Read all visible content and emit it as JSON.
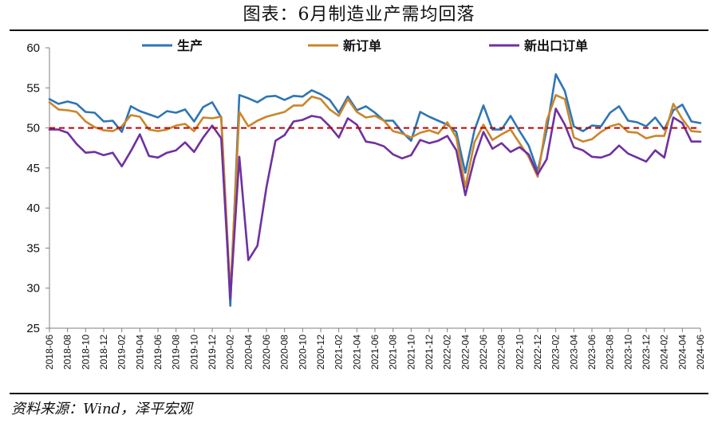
{
  "title": "图表：6月制造业产需均回落",
  "source": "资料来源：Wind，泽平宏观",
  "chart_data": {
    "type": "line",
    "ylim": [
      25,
      60
    ],
    "yticks": [
      25,
      30,
      35,
      40,
      45,
      50,
      55,
      60
    ],
    "reference_line": {
      "value": 50,
      "color": "#c00000",
      "style": "dashed"
    },
    "legend_placement": "top",
    "x": [
      "2018-06",
      "2018-07",
      "2018-08",
      "2018-09",
      "2018-10",
      "2018-11",
      "2018-12",
      "2019-01",
      "2019-02",
      "2019-03",
      "2019-04",
      "2019-05",
      "2019-06",
      "2019-07",
      "2019-08",
      "2019-09",
      "2019-10",
      "2019-11",
      "2019-12",
      "2020-01",
      "2020-02",
      "2020-03",
      "2020-04",
      "2020-05",
      "2020-06",
      "2020-07",
      "2020-08",
      "2020-09",
      "2020-10",
      "2020-11",
      "2020-12",
      "2021-01",
      "2021-02",
      "2021-03",
      "2021-04",
      "2021-05",
      "2021-06",
      "2021-07",
      "2021-08",
      "2021-09",
      "2021-10",
      "2021-11",
      "2021-12",
      "2022-01",
      "2022-02",
      "2022-03",
      "2022-04",
      "2022-05",
      "2022-06",
      "2022-07",
      "2022-08",
      "2022-09",
      "2022-10",
      "2022-11",
      "2022-12",
      "2023-01",
      "2023-02",
      "2023-03",
      "2023-04",
      "2023-05",
      "2023-06",
      "2023-07",
      "2023-08",
      "2023-09",
      "2023-10",
      "2023-11",
      "2023-12",
      "2024-01",
      "2024-02",
      "2024-03",
      "2024-04",
      "2024-05",
      "2024-06"
    ],
    "xticks": [
      "2018-06",
      "2018-08",
      "2018-10",
      "2018-12",
      "2019-02",
      "2019-04",
      "2019-06",
      "2019-08",
      "2019-10",
      "2019-12",
      "2020-02",
      "2020-04",
      "2020-06",
      "2020-08",
      "2020-10",
      "2020-12",
      "2021-02",
      "2021-04",
      "2021-06",
      "2021-08",
      "2021-10",
      "2021-12",
      "2022-02",
      "2022-04",
      "2022-06",
      "2022-08",
      "2022-10",
      "2022-12",
      "2023-02",
      "2023-04",
      "2023-06",
      "2023-08",
      "2023-10",
      "2023-12",
      "2024-02",
      "2024-04",
      "2024-06"
    ],
    "series": [
      {
        "name": "生产",
        "color": "#2e75b6",
        "values": [
          53.6,
          53.0,
          53.3,
          53.0,
          52.0,
          51.9,
          50.8,
          50.9,
          49.5,
          52.7,
          52.1,
          51.7,
          51.3,
          52.1,
          51.9,
          52.3,
          50.8,
          52.6,
          53.2,
          51.3,
          27.8,
          54.1,
          53.7,
          53.2,
          53.9,
          54.0,
          53.5,
          54.0,
          53.9,
          54.7,
          54.2,
          53.5,
          51.9,
          53.9,
          52.2,
          52.7,
          51.9,
          50.9,
          50.9,
          49.5,
          48.4,
          52.0,
          51.4,
          50.9,
          50.4,
          49.5,
          44.4,
          49.7,
          52.8,
          49.8,
          49.8,
          51.5,
          49.6,
          47.8,
          44.6,
          49.8,
          56.7,
          54.6,
          50.2,
          49.6,
          50.3,
          50.2,
          51.9,
          52.7,
          50.9,
          50.7,
          50.2,
          51.3,
          49.8,
          52.2,
          52.9,
          50.8,
          50.6
        ]
      },
      {
        "name": "新订单",
        "color": "#c9862b",
        "values": [
          53.2,
          52.3,
          52.2,
          52.0,
          50.8,
          50.1,
          49.7,
          49.6,
          50.2,
          51.6,
          51.4,
          49.8,
          49.6,
          49.8,
          50.3,
          50.5,
          49.6,
          51.3,
          51.2,
          51.4,
          29.3,
          52.0,
          50.2,
          50.9,
          51.4,
          51.7,
          52.0,
          52.8,
          52.8,
          53.9,
          53.6,
          52.3,
          51.5,
          53.6,
          52.0,
          51.3,
          51.5,
          50.9,
          49.6,
          49.3,
          48.8,
          49.4,
          49.7,
          49.3,
          50.7,
          48.8,
          42.6,
          48.2,
          50.4,
          48.5,
          49.2,
          49.8,
          48.1,
          46.4,
          43.9,
          50.9,
          54.1,
          53.6,
          48.8,
          48.3,
          48.6,
          49.5,
          50.2,
          50.5,
          49.5,
          49.4,
          48.7,
          49.0,
          49.0,
          53.0,
          51.1,
          49.6,
          49.5
        ]
      },
      {
        "name": "新出口订单",
        "color": "#7030a0",
        "values": [
          49.8,
          49.8,
          49.4,
          48.0,
          46.9,
          47.0,
          46.6,
          46.9,
          45.2,
          47.1,
          49.2,
          46.5,
          46.3,
          46.9,
          47.2,
          48.2,
          47.0,
          48.8,
          50.3,
          48.7,
          28.7,
          46.4,
          33.5,
          35.3,
          42.6,
          48.4,
          49.1,
          50.8,
          51.0,
          51.5,
          51.3,
          50.2,
          48.8,
          51.2,
          50.4,
          48.3,
          48.1,
          47.7,
          46.7,
          46.2,
          46.6,
          48.5,
          48.1,
          48.4,
          49.0,
          47.2,
          41.6,
          46.2,
          49.5,
          47.4,
          48.1,
          47.0,
          47.6,
          46.7,
          44.2,
          46.1,
          52.4,
          50.4,
          47.6,
          47.2,
          46.4,
          46.3,
          46.7,
          47.8,
          46.8,
          46.3,
          45.8,
          47.2,
          46.3,
          51.3,
          50.6,
          48.3,
          48.3
        ]
      }
    ]
  }
}
